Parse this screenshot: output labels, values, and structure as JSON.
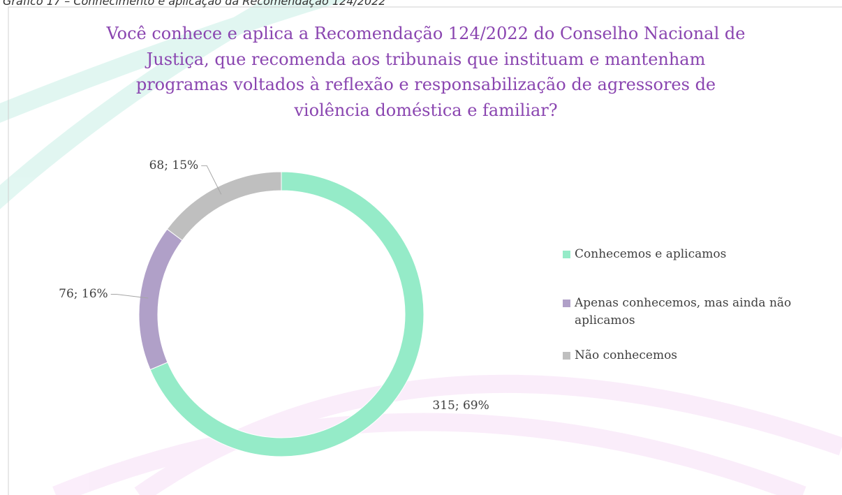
{
  "caption": "Gráfico 17 – Conhecimento e aplicação da Recomendação 124/2022",
  "chart_data": {
    "type": "doughnut",
    "title": "Você conhece e aplica a Recomendação 124/2022 do Conselho Nacional de Justiça, que recomenda aos tribunais que instituam e mantenham programas voltados à reflexão e responsabilização de agressores de violência doméstica e familiar?",
    "categories": [
      "Conhecemos e aplicamos",
      "Apenas conhecemos, mas ainda não aplicamos",
      "Não conhecemos"
    ],
    "values": [
      315,
      76,
      68
    ],
    "value_labels": [
      "315; 69%",
      "76; 16%",
      "68; 15%"
    ],
    "colors": [
      "#95ebc8",
      "#b0a0c8",
      "#bfbfbf"
    ],
    "legend": "right"
  }
}
